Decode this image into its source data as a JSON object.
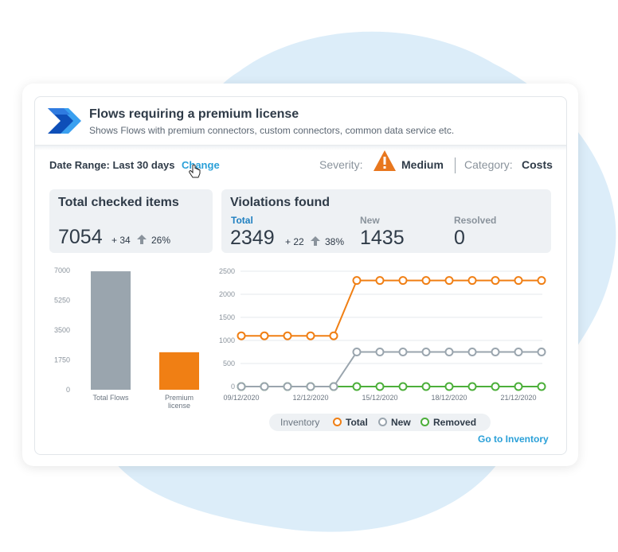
{
  "header": {
    "title": "Flows requiring a premium license",
    "subtitle": "Shows Flows with premium connectors, custom connectors, common data service etc."
  },
  "filters": {
    "date_range": "Date Range: Last 30 days",
    "change_label": "Change",
    "severity_label": "Severity:",
    "severity_value": "Medium",
    "category_label": "Category:",
    "category_value": "Costs"
  },
  "total_checked": {
    "title": "Total checked items",
    "value": "7054",
    "delta": "+ 34",
    "pct": "26%"
  },
  "violations": {
    "title": "Violations found",
    "total_label": "Total",
    "total_value": "2349",
    "total_delta": "+ 22",
    "total_pct": "38%",
    "new_label": "New",
    "new_value": "1435",
    "resolved_label": "Resolved",
    "resolved_value": "0"
  },
  "legend": {
    "title": "Inventory",
    "total": "Total",
    "new": "New",
    "removed": "Removed"
  },
  "go_to_inventory": "Go to Inventory",
  "colors": {
    "accent": "#2aa0d8",
    "orange": "#f07f14",
    "gray": "#9aa5ae",
    "green": "#4caf3a",
    "warning": "#e8771e"
  },
  "chart_data": [
    {
      "type": "bar",
      "categories": [
        "Total Flows",
        "Premium license"
      ],
      "values": [
        6950,
        2200
      ],
      "ylim": [
        0,
        7000
      ],
      "yticks": [
        "7000",
        "5250",
        "3500",
        "1750",
        "0"
      ],
      "colors": [
        "#9aa5ae",
        "#f07f14"
      ]
    },
    {
      "type": "line",
      "ylim": [
        0,
        2500
      ],
      "yticks": [
        "2500",
        "2000",
        "1500",
        "1000",
        "500",
        "0"
      ],
      "xtick_labels": [
        "09/12/2020",
        "12/12/2020",
        "15/12/2020",
        "18/12/2020",
        "21/12/2020"
      ],
      "x": [
        "09/12/2020",
        "10/12/2020",
        "11/12/2020",
        "12/12/2020",
        "13/12/2020",
        "14/12/2020",
        "15/12/2020",
        "16/12/2020",
        "17/12/2020",
        "18/12/2020",
        "19/12/2020",
        "20/12/2020",
        "21/12/2020",
        "22/12/2020"
      ],
      "series": [
        {
          "name": "Total",
          "color": "#f07f14",
          "values": [
            1100,
            1100,
            1100,
            1100,
            1100,
            2300,
            2300,
            2300,
            2300,
            2300,
            2300,
            2300,
            2300,
            2300
          ]
        },
        {
          "name": "New",
          "color": "#9aa5ae",
          "values": [
            0,
            0,
            0,
            0,
            0,
            750,
            750,
            750,
            750,
            750,
            750,
            750,
            750,
            750
          ]
        },
        {
          "name": "Removed",
          "color": "#4caf3a",
          "values": [
            0,
            0,
            0,
            0,
            0,
            0,
            0,
            0,
            0,
            0,
            0,
            0,
            0,
            0
          ]
        }
      ]
    }
  ]
}
